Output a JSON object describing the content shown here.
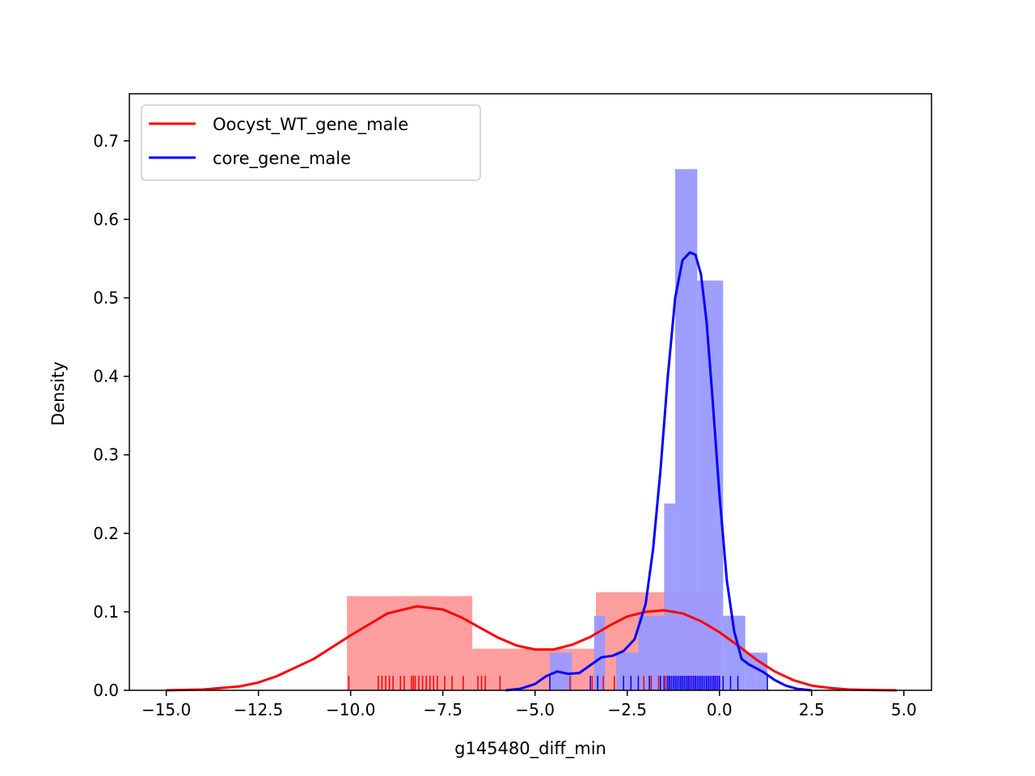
{
  "chart_data": {
    "type": "histogram-kde",
    "xlabel": "g145480_diff_min",
    "ylabel": "Density",
    "xlim": [
      -16.0,
      5.75
    ],
    "ylim": [
      0.0,
      0.76
    ],
    "xticks": [
      -15.0,
      -12.5,
      -10.0,
      -7.5,
      -5.0,
      -2.5,
      0.0,
      2.5,
      5.0
    ],
    "xtick_labels": [
      "−15.0",
      "−12.5",
      "−10.0",
      "−7.5",
      "−5.0",
      "−2.5",
      "0.0",
      "2.5",
      "5.0"
    ],
    "yticks": [
      0.0,
      0.1,
      0.2,
      0.3,
      0.4,
      0.5,
      0.6,
      0.7
    ],
    "ytick_labels": [
      "0.0",
      "0.1",
      "0.2",
      "0.3",
      "0.4",
      "0.5",
      "0.6",
      "0.7"
    ],
    "grid": false,
    "legend_position": "upper-left",
    "series": [
      {
        "name": "Oocyst_WT_gene_male",
        "color": "#ff0000",
        "hist_color": "#ff9999",
        "hist_bins": [
          {
            "x0": -10.1,
            "x1": -6.7,
            "y": 0.12
          },
          {
            "x0": -6.7,
            "x1": -3.35,
            "y": 0.053
          },
          {
            "x0": -3.35,
            "x1": 0.0,
            "y": 0.125
          }
        ],
        "kde": {
          "x": [
            -15.0,
            -14.0,
            -13.0,
            -12.5,
            -12.0,
            -11.0,
            -10.0,
            -9.0,
            -8.2,
            -7.5,
            -7.0,
            -6.5,
            -6.0,
            -5.5,
            -5.0,
            -4.5,
            -4.0,
            -3.5,
            -3.0,
            -2.5,
            -2.0,
            -1.5,
            -1.0,
            -0.5,
            0.0,
            0.5,
            1.0,
            1.5,
            2.0,
            2.5,
            3.0,
            3.5,
            4.0,
            4.5,
            4.8
          ],
          "y": [
            0.0,
            0.001,
            0.005,
            0.01,
            0.018,
            0.04,
            0.07,
            0.098,
            0.107,
            0.103,
            0.093,
            0.08,
            0.067,
            0.057,
            0.052,
            0.052,
            0.058,
            0.068,
            0.082,
            0.094,
            0.1,
            0.102,
            0.098,
            0.088,
            0.074,
            0.057,
            0.039,
            0.024,
            0.013,
            0.006,
            0.003,
            0.001,
            0.0005,
            0.0001,
            0.0
          ]
        },
        "rug": [
          -10.05,
          -9.25,
          -9.15,
          -9.05,
          -8.95,
          -8.85,
          -8.65,
          -8.55,
          -8.35,
          -8.3,
          -8.25,
          -8.15,
          -8.05,
          -7.95,
          -7.85,
          -7.75,
          -7.65,
          -7.45,
          -7.25,
          -6.95,
          -6.55,
          -6.45,
          -6.35,
          -5.95,
          -4.05,
          -3.45,
          -3.15,
          -2.85,
          -2.05,
          -1.85,
          -1.65,
          -1.45,
          -1.35,
          -1.25,
          -1.15,
          -1.05,
          -0.95,
          -0.85,
          -0.75,
          -0.65,
          -0.55,
          -0.45,
          -0.35,
          -0.25,
          -0.15,
          -0.05
        ]
      },
      {
        "name": "core_gene_male",
        "color": "#0000ff",
        "hist_color": "#9999ff",
        "hist_bins": [
          {
            "x0": -4.6,
            "x1": -4.0,
            "y": 0.048
          },
          {
            "x0": -3.4,
            "x1": -3.1,
            "y": 0.095
          },
          {
            "x0": -2.8,
            "x1": -2.2,
            "y": 0.048
          },
          {
            "x0": -2.2,
            "x1": -1.5,
            "y": 0.095
          },
          {
            "x0": -1.5,
            "x1": -1.2,
            "y": 0.238
          },
          {
            "x0": -1.2,
            "x1": -0.6,
            "y": 0.664
          },
          {
            "x0": -0.6,
            "x1": 0.1,
            "y": 0.522
          },
          {
            "x0": 0.1,
            "x1": 0.7,
            "y": 0.095
          },
          {
            "x0": 0.7,
            "x1": 1.0,
            "y": 0.048
          },
          {
            "x0": 1.0,
            "x1": 1.3,
            "y": 0.048
          }
        ],
        "kde": {
          "x": [
            -5.8,
            -5.4,
            -5.0,
            -4.7,
            -4.4,
            -4.1,
            -3.8,
            -3.5,
            -3.2,
            -2.9,
            -2.6,
            -2.3,
            -2.0,
            -1.8,
            -1.6,
            -1.4,
            -1.2,
            -1.0,
            -0.8,
            -0.65,
            -0.5,
            -0.35,
            -0.2,
            0.0,
            0.2,
            0.4,
            0.6,
            0.8,
            1.0,
            1.2,
            1.5,
            1.8,
            2.1,
            2.5
          ],
          "y": [
            0.0,
            0.002,
            0.008,
            0.018,
            0.024,
            0.021,
            0.022,
            0.032,
            0.042,
            0.044,
            0.05,
            0.065,
            0.11,
            0.18,
            0.28,
            0.4,
            0.5,
            0.548,
            0.558,
            0.555,
            0.53,
            0.47,
            0.38,
            0.25,
            0.14,
            0.075,
            0.04,
            0.033,
            0.028,
            0.023,
            0.013,
            0.006,
            0.002,
            0.0
          ]
        },
        "rug": [
          -4.6,
          -3.5,
          -3.3,
          -2.6,
          -2.4,
          -2.2,
          -1.9,
          -1.6,
          -1.5,
          -1.4,
          -1.35,
          -1.3,
          -1.25,
          -1.2,
          -1.15,
          -1.1,
          -1.05,
          -1.0,
          -0.95,
          -0.9,
          -0.85,
          -0.8,
          -0.75,
          -0.7,
          -0.65,
          -0.6,
          -0.55,
          -0.5,
          -0.45,
          -0.4,
          -0.35,
          -0.3,
          -0.25,
          -0.2,
          -0.15,
          -0.1,
          -0.05,
          0.0,
          0.1,
          0.3,
          0.5,
          1.3
        ]
      }
    ]
  }
}
